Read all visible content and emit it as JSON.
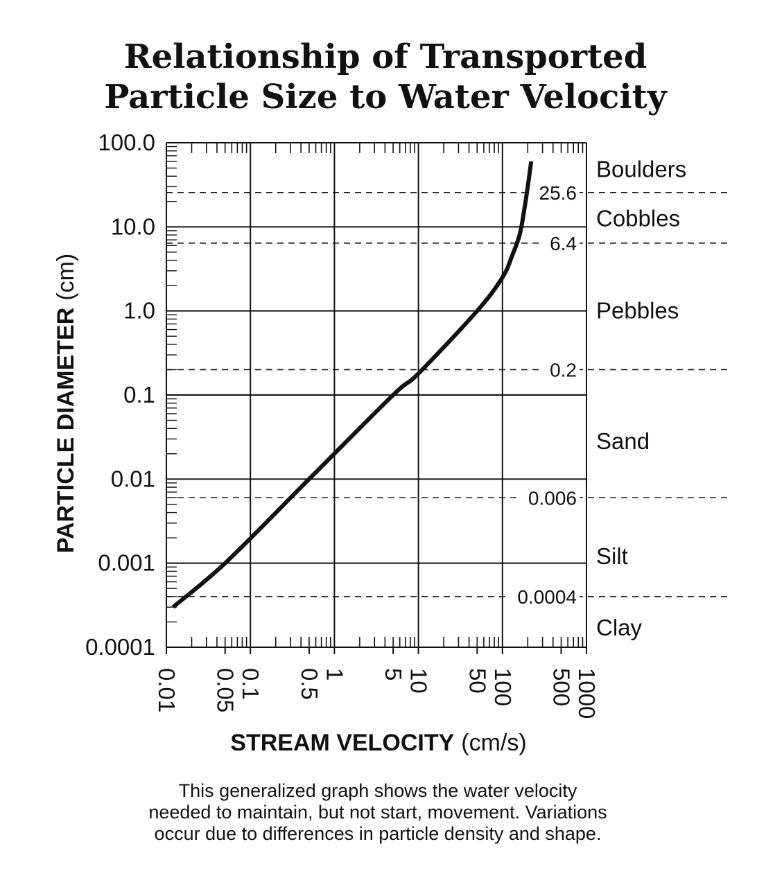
{
  "chart_data": {
    "type": "line",
    "title_lines": [
      "Relationship of Transported",
      "Particle Size to Water Velocity"
    ],
    "xlabel": "STREAM VELOCITY",
    "xlabel_unit": "(cm/s)",
    "ylabel": "PARTICLE DIAMETER",
    "ylabel_unit": "(cm)",
    "xscale": "log",
    "yscale": "log",
    "xlim": [
      0.01,
      1000
    ],
    "ylim": [
      0.0001,
      100
    ],
    "x_tick_labels": [
      {
        "value": 0.01,
        "label": "0.01"
      },
      {
        "value": 0.05,
        "label": "0.05"
      },
      {
        "value": 0.1,
        "label": "0.1"
      },
      {
        "value": 0.5,
        "label": "0.5"
      },
      {
        "value": 1,
        "label": "1"
      },
      {
        "value": 5,
        "label": "5"
      },
      {
        "value": 10,
        "label": "10"
      },
      {
        "value": 50,
        "label": "50"
      },
      {
        "value": 100,
        "label": "100"
      },
      {
        "value": 500,
        "label": "500"
      },
      {
        "value": 1000,
        "label": "1000"
      }
    ],
    "y_tick_labels": [
      {
        "value": 100,
        "label": "100.0"
      },
      {
        "value": 10,
        "label": "10.0"
      },
      {
        "value": 1,
        "label": "1.0"
      },
      {
        "value": 0.1,
        "label": "0.1"
      },
      {
        "value": 0.01,
        "label": "0.01"
      },
      {
        "value": 0.001,
        "label": "0.001"
      },
      {
        "value": 0.0001,
        "label": "0.0001"
      }
    ],
    "boundaries": [
      {
        "value": 25.6,
        "label": "25.6"
      },
      {
        "value": 6.4,
        "label": "6.4"
      },
      {
        "value": 0.2,
        "label": "0.2"
      },
      {
        "value": 0.006,
        "label": "0.006"
      },
      {
        "value": 0.0004,
        "label": "0.0004"
      }
    ],
    "zones": [
      {
        "label": "Boulders",
        "value": 48
      },
      {
        "label": "Cobbles",
        "value": 12.5
      },
      {
        "label": "Pebbles",
        "value": 1.0
      },
      {
        "label": "Sand",
        "value": 0.028
      },
      {
        "label": "Silt",
        "value": 0.0012
      },
      {
        "label": "Clay",
        "value": 0.00017
      }
    ],
    "series": [
      {
        "name": "transport curve",
        "x": [
          0.012,
          0.05,
          0.5,
          5,
          10,
          50,
          100,
          130,
          160,
          180,
          200,
          220
        ],
        "y": [
          0.0003,
          0.001,
          0.01,
          0.1,
          0.18,
          1.0,
          2.5,
          4.5,
          8,
          15,
          30,
          60
        ]
      }
    ]
  },
  "caption_lines": [
    "This generalized graph shows the water velocity",
    "needed to maintain, but not start, movement. Variations",
    "occur due to differences in particle density and  shape."
  ]
}
